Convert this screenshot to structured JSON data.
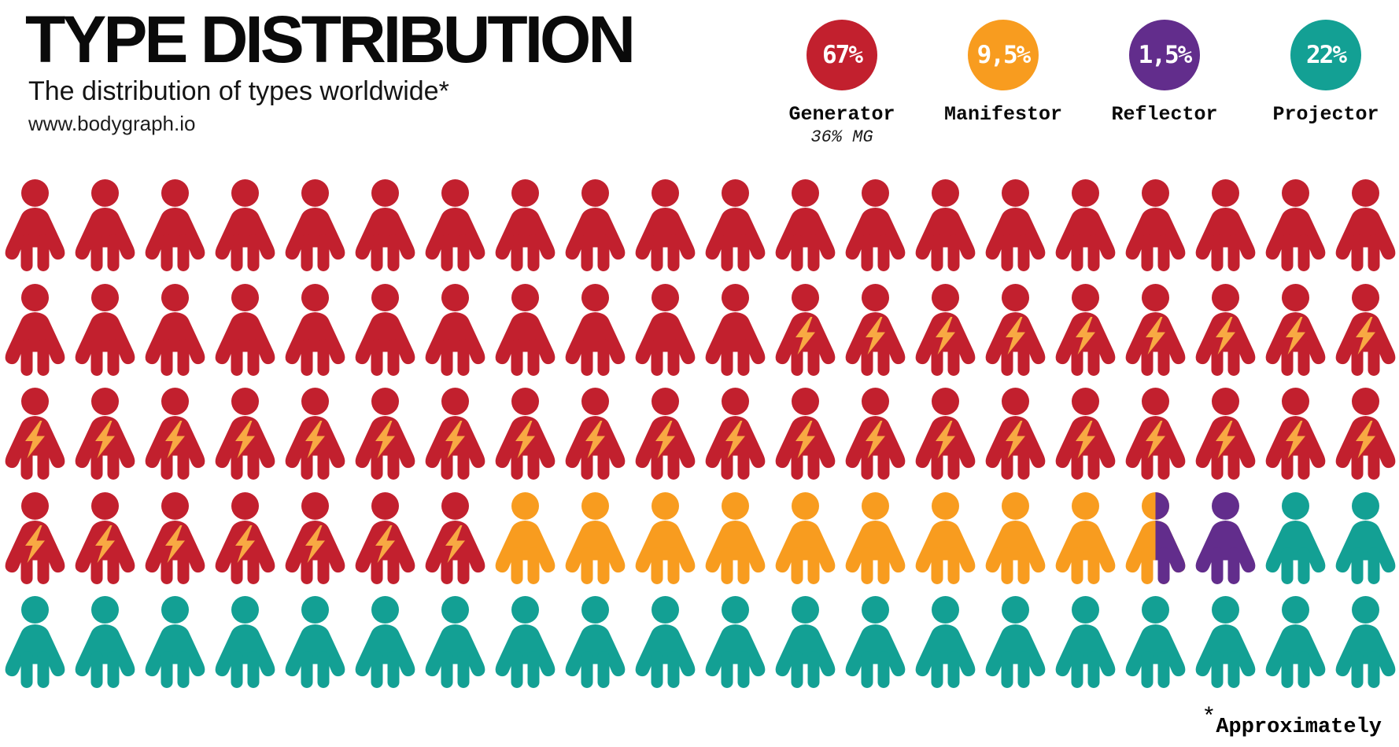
{
  "header": {
    "title": "TYPE DISTRIBUTION",
    "subtitle": "The distribution of types worldwide*",
    "website": "www.bodygraph.io"
  },
  "footnote": {
    "asterisk": "*",
    "text": "Approximately"
  },
  "colors": {
    "generator": "#C2202E",
    "manifestor": "#F89C1F",
    "reflector": "#622D8C",
    "projector": "#13A094",
    "bolt": "#F8A943",
    "title_text": "#0A0A0A",
    "value_text": "#FFFFFF"
  },
  "legend": [
    {
      "id": "generator",
      "value": "67%",
      "label": "Generator",
      "sublabel": "36% MG",
      "color": "#C2202E"
    },
    {
      "id": "manifestor",
      "value": "9,5%",
      "label": "Manifestor",
      "sublabel": "",
      "color": "#F89C1F"
    },
    {
      "id": "reflector",
      "value": "1,5%",
      "label": "Reflector",
      "sublabel": "",
      "color": "#622D8C"
    },
    {
      "id": "projector",
      "value": "22%",
      "label": "Projector",
      "sublabel": "",
      "color": "#13A094"
    }
  ],
  "chart_data": {
    "type": "pictogram",
    "title": "TYPE DISTRIBUTION",
    "subtitle": "The distribution of types worldwide*",
    "unit": "1 person icon = 1% of population; 100 icons in a 5 x 20 grid",
    "legend_position": "top-right",
    "series": [
      {
        "name": "Generator",
        "value_pct": 67,
        "note": "36% MG — Manifesting Generators, drawn with a lightning bolt on the chest",
        "color": "#C2202E"
      },
      {
        "name": "Manifestor",
        "value_pct": 9.5,
        "color": "#F89C1F"
      },
      {
        "name": "Reflector",
        "value_pct": 1.5,
        "color": "#622D8C"
      },
      {
        "name": "Projector",
        "value_pct": 22,
        "color": "#13A094"
      }
    ],
    "grid_legend": {
      "G": "Generator (plain red)",
      "M": "Manifesting Generator (red with bolt)",
      "F": "Manifestor (orange)",
      "S": "split icon: left half Manifestor orange / right half Reflector purple",
      "R": "Reflector (purple)",
      "P": "Projector (teal)"
    },
    "grid_rows": [
      "GGGGGGGGGGGGGGGGGGGG",
      "GGGGGGGGGGGMMMMMMMMM",
      "MMMMMMMMMMMMMMMMMMMM",
      "MMMMMMMFFFFFFFFFSRPP",
      "PPPPPPPPPPPPPPPPPPPP"
    ]
  }
}
